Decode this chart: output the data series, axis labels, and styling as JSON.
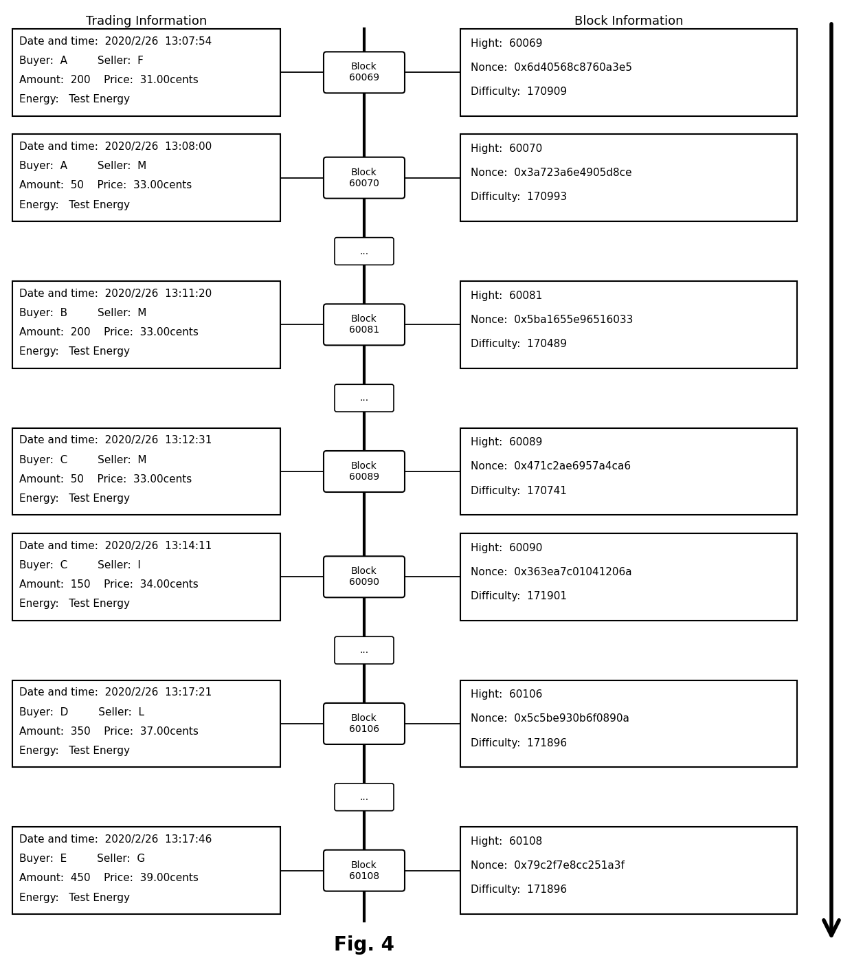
{
  "title_left": "Trading Information",
  "title_right": "Block Information",
  "fig_label": "Fig. 4",
  "background_color": "#ffffff",
  "trades": [
    {
      "line1": "Date and time:  2020/2/26  13:07:54",
      "line2": "Buyer:  A         Seller:  F",
      "line3": "Amount:  200    Price:  31.00cents",
      "line4": "Energy:   Test Energy",
      "block_id": "Block\n60069",
      "block_hight": "60069",
      "block_nonce": "0x6d40568c8760a3e5",
      "block_difficulty": "170909",
      "dots_below": false
    },
    {
      "line1": "Date and time:  2020/2/26  13:08:00",
      "line2": "Buyer:  A         Seller:  M",
      "line3": "Amount:  50    Price:  33.00cents",
      "line4": "Energy:   Test Energy",
      "block_id": "Block\n60070",
      "block_hight": "60070",
      "block_nonce": "0x3a723a6e4905d8ce",
      "block_difficulty": "170993",
      "dots_below": true
    },
    {
      "line1": "Date and time:  2020/2/26  13:11:20",
      "line2": "Buyer:  B         Seller:  M",
      "line3": "Amount:  200    Price:  33.00cents",
      "line4": "Energy:   Test Energy",
      "block_id": "Block\n60081",
      "block_hight": "60081",
      "block_nonce": "0x5ba1655e96516033",
      "block_difficulty": "170489",
      "dots_below": true
    },
    {
      "line1": "Date and time:  2020/2/26  13:12:31",
      "line2": "Buyer:  C         Seller:  M",
      "line3": "Amount:  50    Price:  33.00cents",
      "line4": "Energy:   Test Energy",
      "block_id": "Block\n60089",
      "block_hight": "60089",
      "block_nonce": "0x471c2ae6957a4ca6",
      "block_difficulty": "170741",
      "dots_below": false
    },
    {
      "line1": "Date and time:  2020/2/26  13:14:11",
      "line2": "Buyer:  C         Seller:  I",
      "line3": "Amount:  150    Price:  34.00cents",
      "line4": "Energy:   Test Energy",
      "block_id": "Block\n60090",
      "block_hight": "60090",
      "block_nonce": "0x363ea7c01041206a",
      "block_difficulty": "171901",
      "dots_below": true
    },
    {
      "line1": "Date and time:  2020/2/26  13:17:21",
      "line2": "Buyer:  D         Seller:  L",
      "line3": "Amount:  350    Price:  37.00cents",
      "line4": "Energy:   Test Energy",
      "block_id": "Block\n60106",
      "block_hight": "60106",
      "block_nonce": "0x5c5be930b6f0890a",
      "block_difficulty": "171896",
      "dots_below": true
    },
    {
      "line1": "Date and time:  2020/2/26  13:17:46",
      "line2": "Buyer:  E         Seller:  G",
      "line3": "Amount:  450    Price:  39.00cents",
      "line4": "Energy:   Test Energy",
      "block_id": "Block\n60108",
      "block_hight": "60108",
      "block_nonce": "0x79c2f7e8cc251a3f",
      "block_difficulty": "171896",
      "dots_below": false
    }
  ]
}
